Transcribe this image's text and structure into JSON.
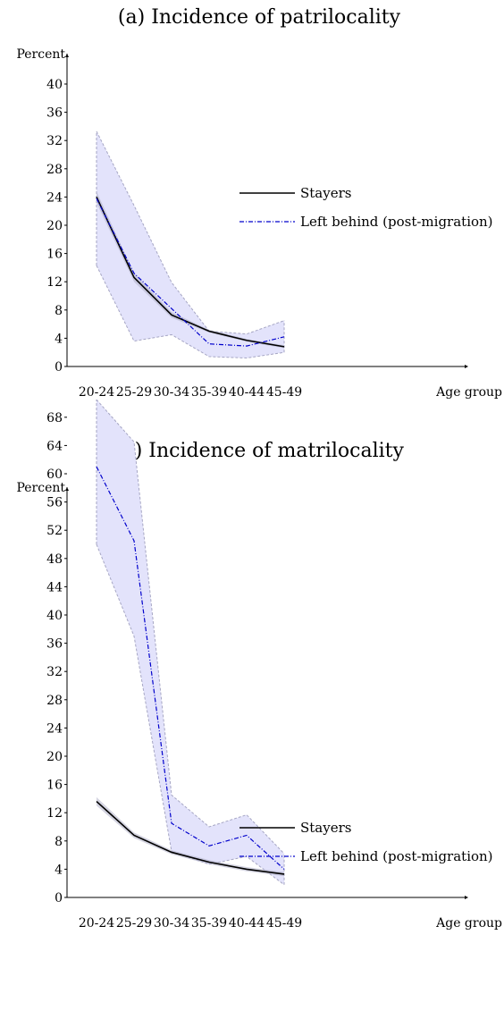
{
  "chart_data": [
    {
      "type": "line",
      "title": "(a)  Incidence of patrilocality",
      "ylabel": "Percent",
      "xlabel": "Age group",
      "categories": [
        "20-24",
        "25-29",
        "30-34",
        "35-39",
        "40-44",
        "45-49"
      ],
      "ylim": [
        0,
        42
      ],
      "yticks": [
        0,
        4,
        8,
        12,
        16,
        20,
        24,
        28,
        32,
        36,
        40
      ],
      "legend_position": "center-right",
      "series": [
        {
          "name": "Stayers",
          "style": "solid",
          "color": "#000000",
          "values": [
            24.0,
            12.6,
            7.3,
            5.0,
            3.7,
            2.8
          ],
          "ci_lower": [
            23.2,
            12.0,
            6.9,
            4.8,
            3.5,
            2.6
          ],
          "ci_upper": [
            24.8,
            13.2,
            7.7,
            5.2,
            3.9,
            3.0
          ]
        },
        {
          "name": "Left behind (post-migration)",
          "style": "dash-dot",
          "color": "#0000cc",
          "values": [
            23.8,
            13.2,
            8.2,
            3.2,
            2.9,
            4.2
          ],
          "ci_lower": [
            14.3,
            3.6,
            4.5,
            1.4,
            1.2,
            2.0
          ],
          "ci_upper": [
            33.3,
            22.8,
            11.9,
            5.0,
            4.6,
            6.5
          ]
        }
      ]
    },
    {
      "type": "line",
      "title": "(b)  Incidence of matrilocality",
      "ylabel": "Percent",
      "xlabel": "Age group",
      "categories": [
        "20-24",
        "25-29",
        "30-34",
        "35-39",
        "40-44",
        "45-49"
      ],
      "ylim": [
        0,
        70
      ],
      "yticks": [
        0,
        4,
        8,
        12,
        16,
        20,
        24,
        28,
        32,
        36,
        40,
        44,
        48,
        52,
        56,
        60,
        64,
        68
      ],
      "legend_position": "center-right",
      "series": [
        {
          "name": "Stayers",
          "style": "solid",
          "color": "#000000",
          "values": [
            13.6,
            8.8,
            6.4,
            5.0,
            4.0,
            3.3
          ],
          "ci_lower": [
            13.0,
            8.4,
            6.1,
            4.7,
            3.7,
            3.0
          ],
          "ci_upper": [
            14.2,
            9.2,
            6.7,
            5.3,
            4.3,
            3.6
          ]
        },
        {
          "name": "Left behind (post-migration)",
          "style": "dash-dot",
          "color": "#0000cc",
          "values": [
            61.0,
            50.5,
            10.5,
            7.3,
            8.8,
            4.0
          ],
          "ci_lower": [
            50.0,
            37.0,
            6.5,
            4.7,
            5.8,
            1.8
          ],
          "ci_upper": [
            70.5,
            64.5,
            14.5,
            10.0,
            11.7,
            6.2
          ]
        }
      ]
    }
  ],
  "colors": {
    "band_fill": "#e3e3fb",
    "band_edge": "#a6a6c4",
    "stayers_band": "#b0b0c8"
  }
}
